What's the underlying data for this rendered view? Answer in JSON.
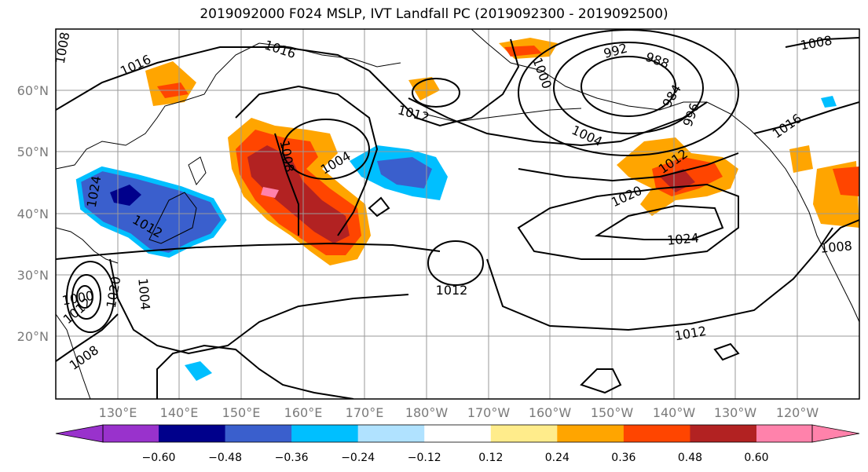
{
  "title": "2019092000 F024 MSLP, IVT Landfall PC (2019092300 - 2019092500)",
  "latitude_labels": [
    "60°N",
    "50°N",
    "40°N",
    "30°N",
    "20°N"
  ],
  "longitude_labels": [
    "130°E",
    "140°E",
    "150°E",
    "160°E",
    "170°E",
    "180°W",
    "170°W",
    "160°W",
    "150°W",
    "140°W",
    "130°W",
    "120°W"
  ],
  "colorbar": {
    "colors": [
      "#9932cc",
      "#00008b",
      "#3a5fcd",
      "#00bfff",
      "#b0e2ff",
      "#ffffff",
      "#ffec8b",
      "#ffa500",
      "#ff4500",
      "#b22222",
      "#ff82ab"
    ],
    "tick_labels": [
      "−0.60",
      "−0.48",
      "−0.36",
      "−0.24",
      "−0.12",
      "0.12",
      "0.24",
      "0.36",
      "0.48",
      "0.60"
    ]
  },
  "isobar_labels": [
    "1016",
    "1016",
    "1008",
    "1012",
    "1008",
    "1004",
    "1004",
    "992",
    "988",
    "984",
    "996",
    "1000",
    "1016",
    "1008",
    "1020",
    "1012",
    "1024",
    "1012",
    "1024",
    "1012",
    "1020",
    "1004",
    "1012",
    "1000",
    "1008",
    "1008",
    "1012"
  ]
}
